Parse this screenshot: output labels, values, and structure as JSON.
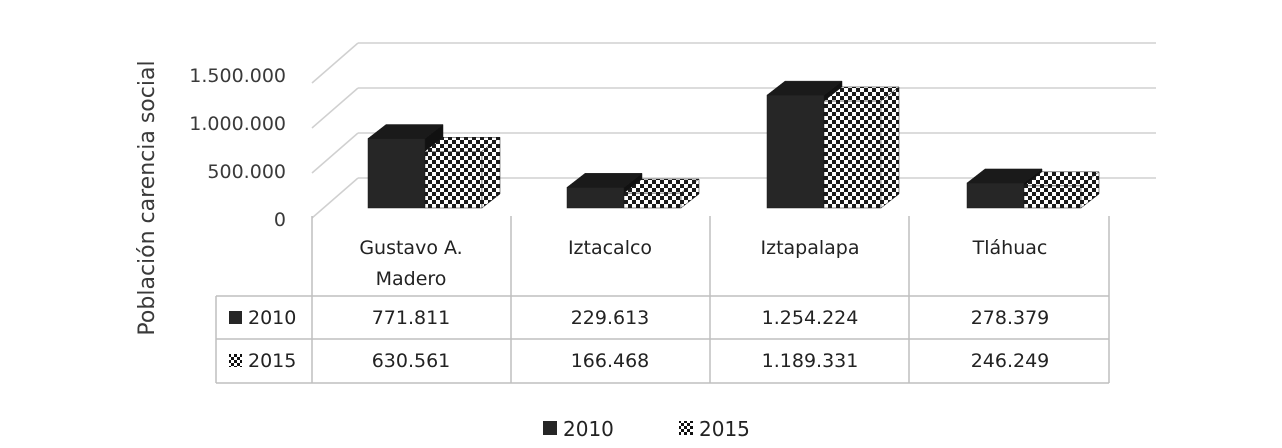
{
  "chart_data": {
    "type": "bar",
    "ylabel": "Población carencia social",
    "ylim": [
      0,
      1500000
    ],
    "yticks": [
      "0",
      "500.000",
      "1.000.000",
      "1.500.000"
    ],
    "categories": [
      "Gustavo A. Madero",
      "Iztacalco",
      "Iztapalapa",
      "Tláhuac"
    ],
    "category_lines": [
      [
        "Gustavo A.",
        "Madero"
      ],
      [
        "Iztacalco"
      ],
      [
        "Iztapalapa"
      ],
      [
        "Tláhuac"
      ]
    ],
    "series": [
      {
        "name": "2010",
        "values": [
          771811,
          229613,
          1254224,
          278379
        ],
        "labels": [
          "771.811",
          "229.613",
          "1.254.224",
          "278.379"
        ],
        "fill": "solid-dark"
      },
      {
        "name": "2015",
        "values": [
          630561,
          166468,
          1189331,
          246249
        ],
        "labels": [
          "630.561",
          "166.468",
          "1.189.331",
          "246.249"
        ],
        "fill": "checker-pattern"
      }
    ],
    "grid": true,
    "data_table": true,
    "legend_position": "bottom",
    "style": "3d-clustered-column"
  },
  "colors": {
    "dark": "#262626",
    "grid": "#d0d0d0",
    "table_border": "#bfbfbf",
    "text": "#3a3a3a"
  }
}
